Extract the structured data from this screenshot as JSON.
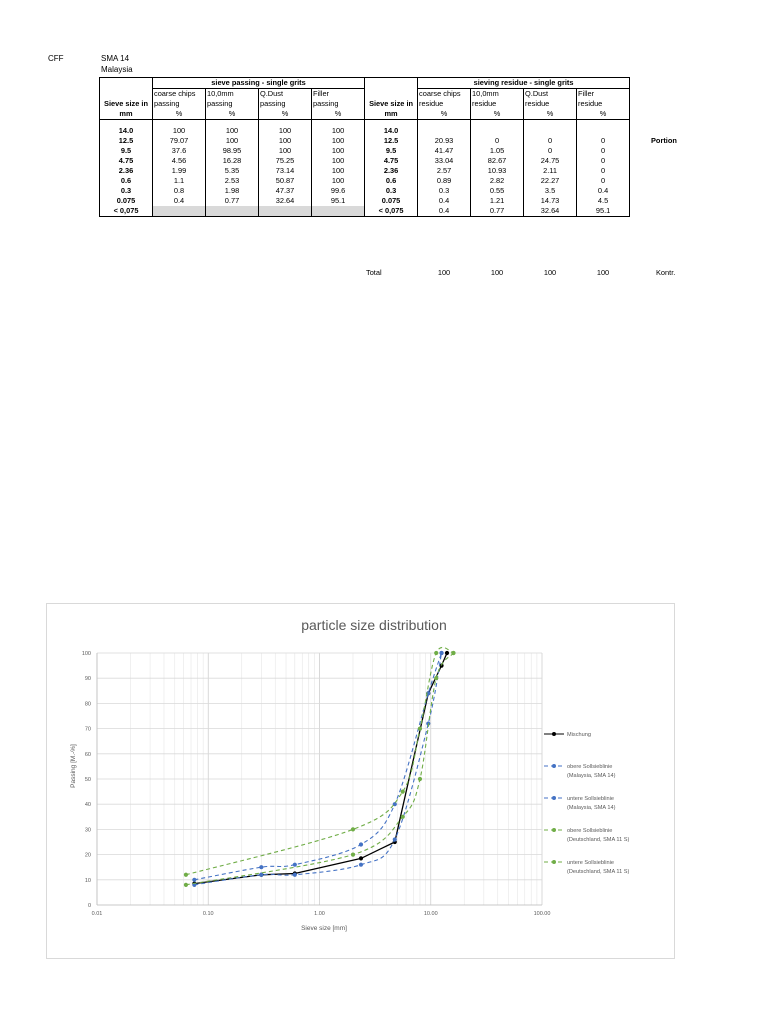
{
  "header": {
    "code": "CFF",
    "mix": "SMA 14",
    "country": "Malaysia"
  },
  "table": {
    "passing_title": "sieve passing - single grits",
    "residue_title": "sieving residue - single grits",
    "sieve_col_label_1": "Sieve size in",
    "sieve_col_label_2": "mm",
    "passing_cols": [
      {
        "l1": "coarse chips",
        "l2": "passing",
        "unit": "%"
      },
      {
        "l1": "10,0mm",
        "l2": "passing",
        "unit": "%"
      },
      {
        "l1": "Q.Dust",
        "l2": "passing",
        "unit": "%"
      },
      {
        "l1": "Filler",
        "l2": "passing",
        "unit": "%"
      }
    ],
    "residue_cols": [
      {
        "l1": "coarse chips",
        "l2": "residue",
        "unit": "%"
      },
      {
        "l1": "10,0mm",
        "l2": "residue",
        "unit": "%"
      },
      {
        "l1": "Q.Dust",
        "l2": "residue",
        "unit": "%"
      },
      {
        "l1": "Filler",
        "l2": "residue",
        "unit": "%"
      }
    ],
    "portion_label": "Portion",
    "rows": [
      {
        "sieve": "14.0",
        "passing": [
          "100",
          "100",
          "100",
          "100"
        ],
        "residue": [
          "",
          "",
          "",
          ""
        ]
      },
      {
        "sieve": "12.5",
        "passing": [
          "79.07",
          "100",
          "100",
          "100"
        ],
        "residue": [
          "20.93",
          "0",
          "0",
          "0"
        ]
      },
      {
        "sieve": "9.5",
        "passing": [
          "37.6",
          "98.95",
          "100",
          "100"
        ],
        "residue": [
          "41.47",
          "1.05",
          "0",
          "0"
        ]
      },
      {
        "sieve": "4.75",
        "passing": [
          "4.56",
          "16.28",
          "75.25",
          "100"
        ],
        "residue": [
          "33.04",
          "82.67",
          "24.75",
          "0"
        ]
      },
      {
        "sieve": "2.36",
        "passing": [
          "1.99",
          "5.35",
          "73.14",
          "100"
        ],
        "residue": [
          "2.57",
          "10.93",
          "2.11",
          "0"
        ]
      },
      {
        "sieve": "0.6",
        "passing": [
          "1.1",
          "2.53",
          "50.87",
          "100"
        ],
        "residue": [
          "0.89",
          "2.82",
          "22.27",
          "0"
        ]
      },
      {
        "sieve": "0.3",
        "passing": [
          "0.8",
          "1.98",
          "47.37",
          "99.6"
        ],
        "residue": [
          "0.3",
          "0.55",
          "3.5",
          "0.4"
        ]
      },
      {
        "sieve": "0.075",
        "passing": [
          "0.4",
          "0.77",
          "32.64",
          "95.1"
        ],
        "residue": [
          "0.4",
          "1.21",
          "14.73",
          "4.5"
        ]
      },
      {
        "sieve": "< 0,075",
        "passing": [
          "",
          "",
          "",
          ""
        ],
        "residue": [
          "0.4",
          "0.77",
          "32.64",
          "95.1"
        ]
      }
    ],
    "total_label": "Total",
    "totals": [
      "100",
      "100",
      "100",
      "100"
    ],
    "control_label": "Kontr."
  },
  "chart_data": {
    "type": "line",
    "title": "particle size distribution",
    "xlabel": "Sieve size [mm]",
    "ylabel": "Passing [M.-%]",
    "xscale": "log",
    "xlim": [
      0.01,
      100
    ],
    "ylim": [
      0,
      100
    ],
    "x_ticks": [
      "0.01",
      "0.10",
      "1.00",
      "10.00",
      "100.00"
    ],
    "y_ticks": [
      "0",
      "10",
      "20",
      "30",
      "40",
      "50",
      "60",
      "70",
      "80",
      "90",
      "100"
    ],
    "grid": true,
    "legend_position": "right",
    "series": [
      {
        "name": "Mischung",
        "color": "#000000",
        "style": "solid",
        "x": [
          0.075,
          0.3,
          0.6,
          2.36,
          4.75,
          9.5,
          12.5,
          14.0
        ],
        "y": [
          8.5,
          12,
          12.5,
          18.5,
          25,
          84,
          95,
          100
        ]
      },
      {
        "name": "obere Sollsieblinie (Malaysia, SMA 14)",
        "color": "#4472c4",
        "style": "dashed",
        "x": [
          0.075,
          0.3,
          0.6,
          2.36,
          4.75,
          9.5,
          12.5
        ],
        "y": [
          10,
          15,
          16,
          24,
          40,
          84,
          100
        ]
      },
      {
        "name": "untere Sollsieblinie (Malaysia, SMA 14)",
        "color": "#4472c4",
        "style": "dashed",
        "x": [
          0.075,
          0.3,
          0.6,
          2.36,
          4.75,
          9.5,
          12.5
        ],
        "y": [
          8,
          12,
          12,
          16,
          26,
          72,
          100
        ]
      },
      {
        "name": "obere Sollsieblinie (Deutschland, SMA 11 S)",
        "color": "#70ad47",
        "style": "dashed",
        "x": [
          0.063,
          2.0,
          5.6,
          8.0,
          11.2,
          16.0
        ],
        "y": [
          12,
          30,
          45,
          70,
          100,
          100
        ]
      },
      {
        "name": "untere Sollsieblinie (Deutschland, SMA 11 S)",
        "color": "#70ad47",
        "style": "dashed",
        "x": [
          0.063,
          2.0,
          5.6,
          8.0,
          11.2,
          16.0
        ],
        "y": [
          8,
          20,
          35,
          50,
          90,
          100
        ]
      }
    ]
  }
}
